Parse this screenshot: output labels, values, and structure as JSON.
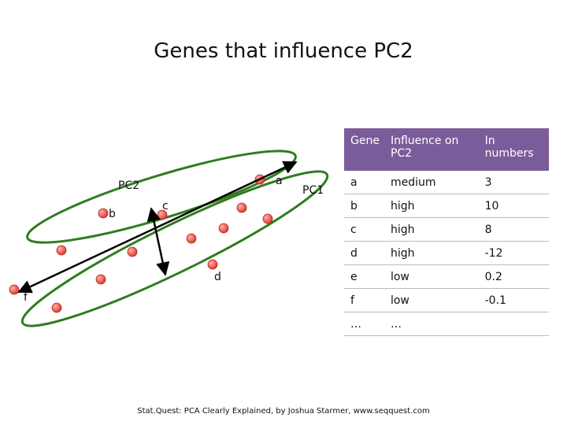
{
  "title": "Genes that influence PC2",
  "diagram": {
    "axis_labels": [
      "PC2",
      "PC1"
    ],
    "point_labels": [
      "a",
      "b",
      "c",
      "d",
      "f"
    ]
  },
  "table": {
    "header": [
      "Gene",
      "Influence on PC2",
      "In numbers"
    ],
    "rows": [
      [
        "a",
        "medium",
        3
      ],
      [
        "b",
        "high",
        10
      ],
      [
        "c",
        "high",
        8
      ],
      [
        "d",
        "high",
        -12
      ],
      [
        "e",
        "low",
        0.2
      ],
      [
        "f",
        "low",
        -0.1
      ],
      [
        "…",
        "…"
      ]
    ]
  },
  "footer": "Stat.Quest: PCA Clearly Explained, by Joshua Starmer, www.seqquest.com"
}
